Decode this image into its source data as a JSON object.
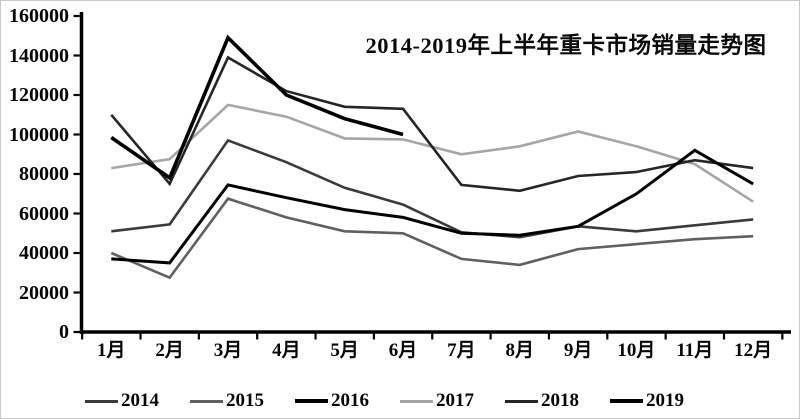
{
  "chart_data": {
    "type": "line",
    "title": "2014-2019年上半年重卡市场销量走势图",
    "xlabel": "",
    "ylabel": "",
    "ylim": [
      0,
      160000
    ],
    "ytick_step": 20000,
    "y_tick_labels": [
      "160000",
      "140000",
      "120000",
      "100000",
      "80000",
      "60000",
      "40000",
      "20000",
      "0"
    ],
    "categories": [
      "1月",
      "2月",
      "3月",
      "4月",
      "5月",
      "6月",
      "7月",
      "8月",
      "9月",
      "10月",
      "11月",
      "12月"
    ],
    "grid": false,
    "legend_position": "bottom",
    "series": [
      {
        "name": "2014",
        "color": "#3b3b3b",
        "width": 2.6,
        "values": [
          51000,
          54500,
          97000,
          86000,
          73000,
          64500,
          50500,
          48000,
          53500,
          51000,
          54000,
          57000
        ]
      },
      {
        "name": "2015",
        "color": "#606060",
        "width": 2.6,
        "values": [
          40000,
          27500,
          67500,
          58000,
          51000,
          50000,
          37000,
          34000,
          42000,
          44500,
          47000,
          48500
        ]
      },
      {
        "name": "2016",
        "color": "#000000",
        "width": 3,
        "values": [
          37000,
          35000,
          74500,
          68000,
          62000,
          58000,
          50000,
          49000,
          53500,
          70000,
          92000,
          75000
        ]
      },
      {
        "name": "2017",
        "color": "#a6a6a6",
        "width": 2.6,
        "values": [
          83000,
          87500,
          115000,
          109000,
          98000,
          97500,
          90000,
          94000,
          101500,
          94000,
          85000,
          66000
        ]
      },
      {
        "name": "2018",
        "color": "#262626",
        "width": 2.6,
        "values": [
          110000,
          75000,
          139000,
          122000,
          114000,
          113000,
          74500,
          71500,
          79000,
          81000,
          87000,
          83000
        ]
      },
      {
        "name": "2019",
        "color": "#000000",
        "width": 3.6,
        "values": [
          98500,
          78000,
          149000,
          120000,
          108000,
          100000
        ]
      }
    ]
  }
}
